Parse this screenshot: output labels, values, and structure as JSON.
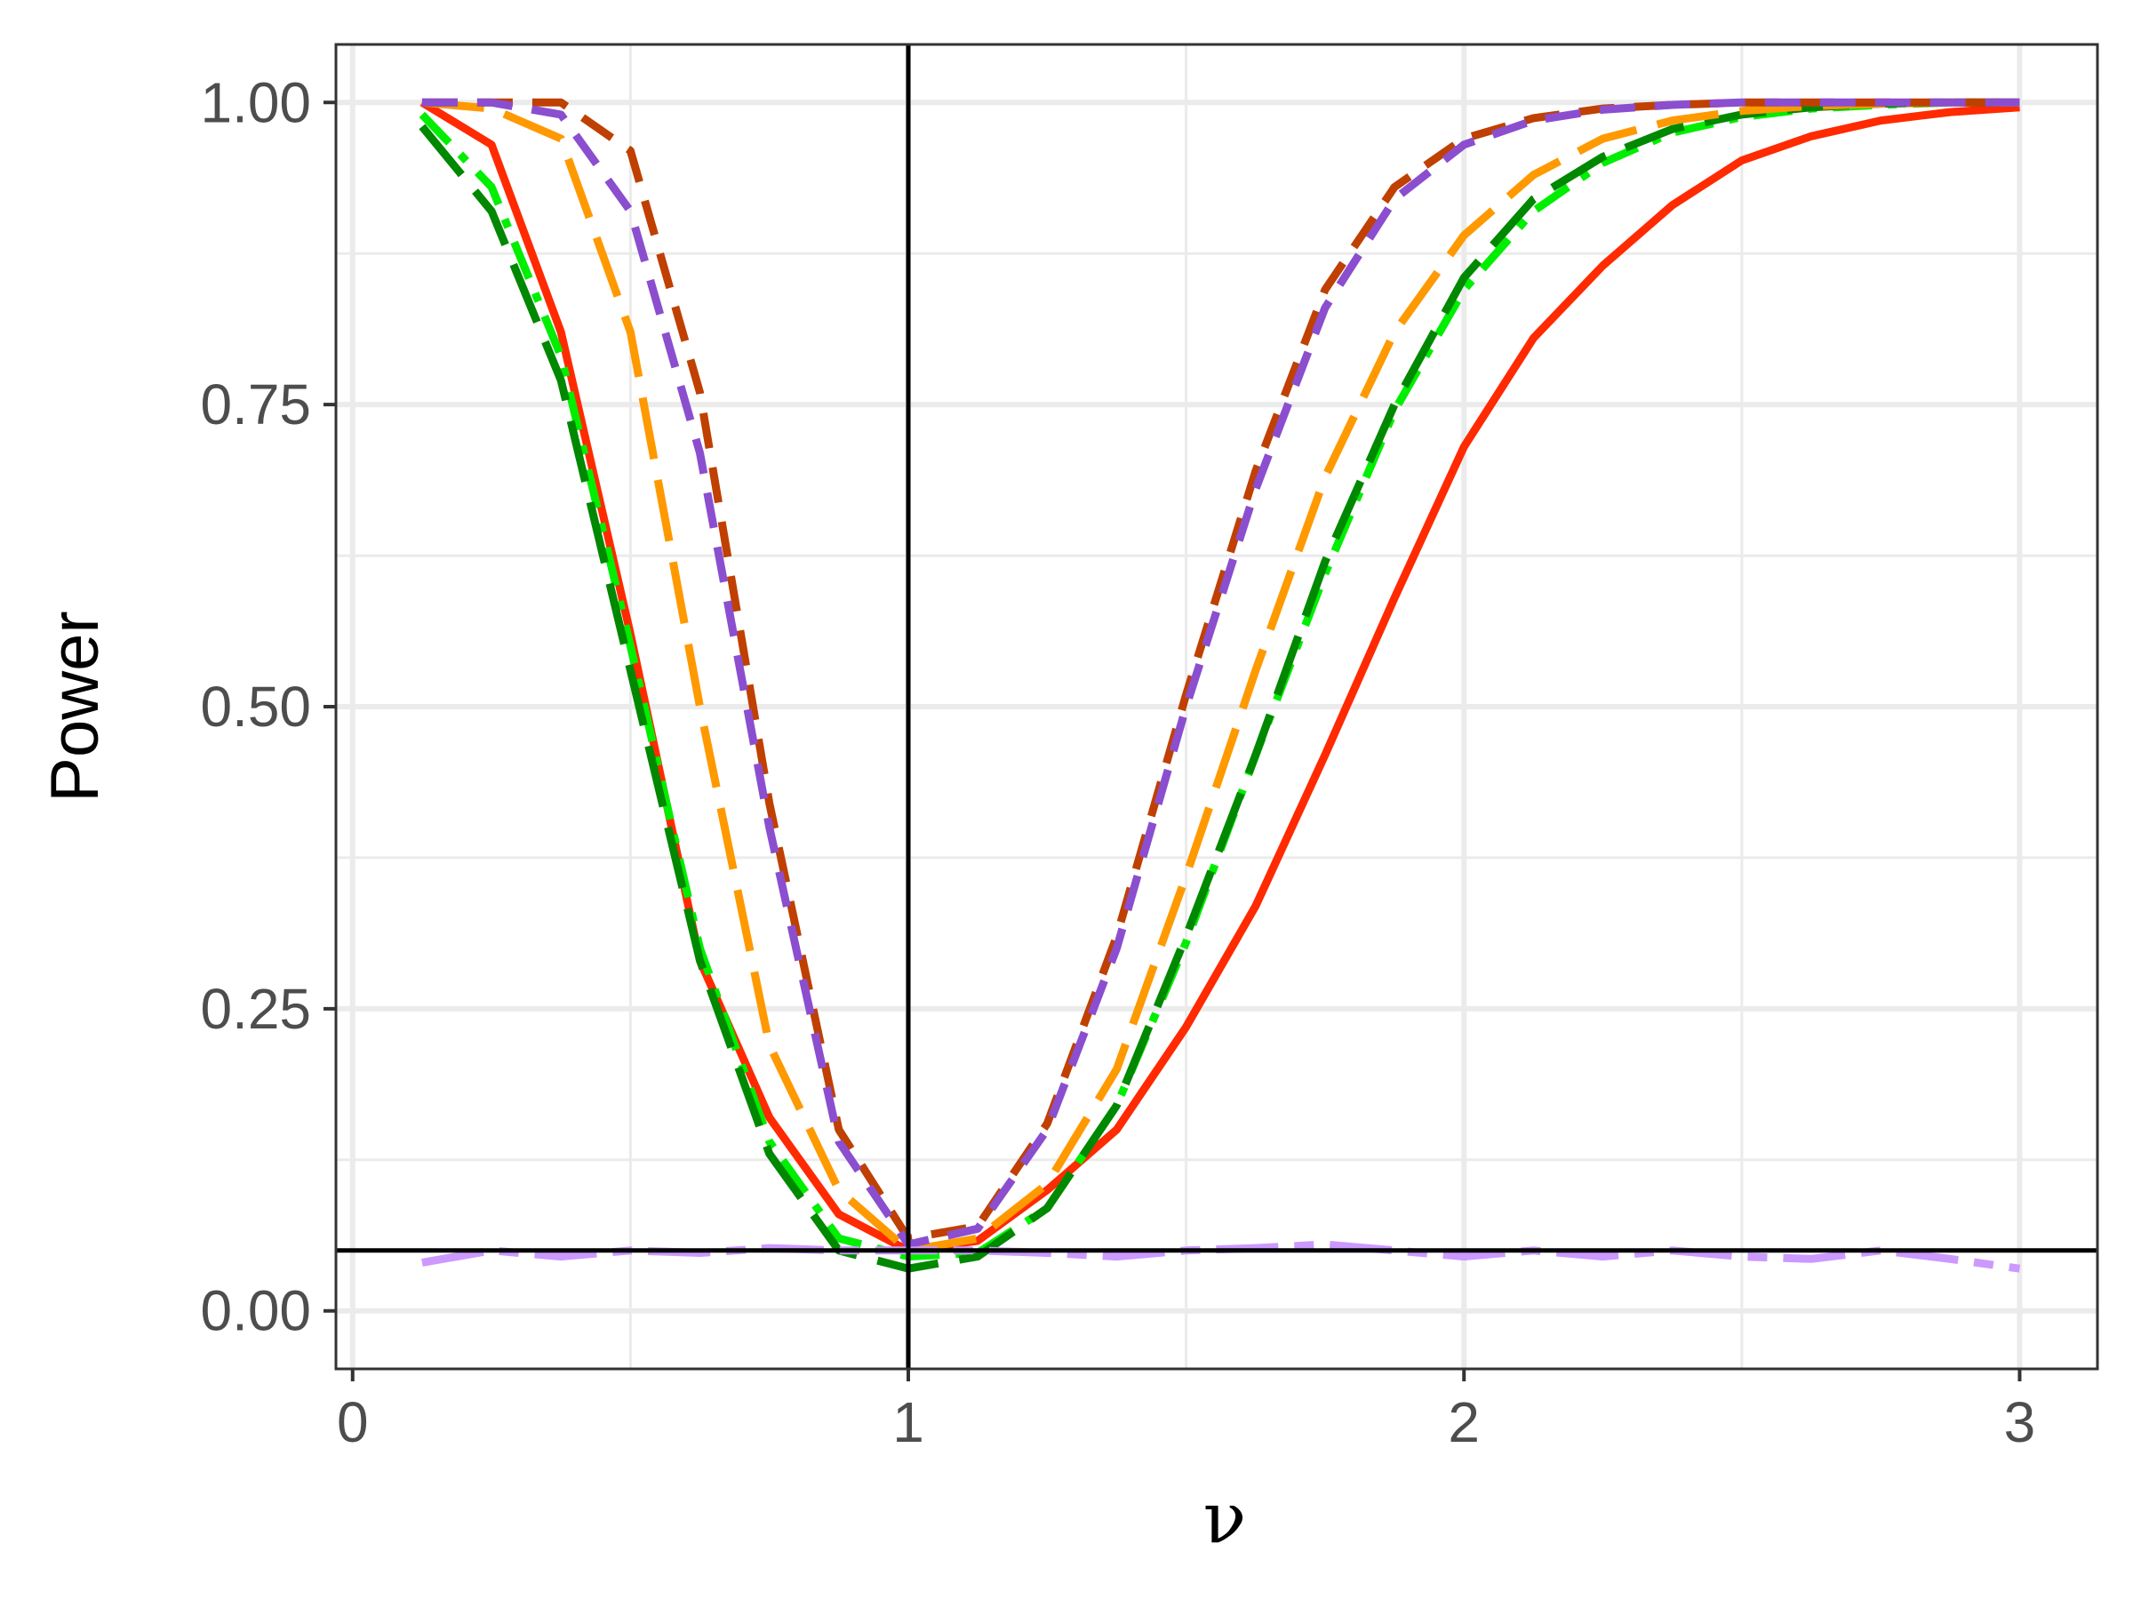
{
  "chart_data": {
    "type": "line",
    "xlabel": "ν",
    "ylabel": "Power",
    "xlim": [
      -0.03,
      3.14
    ],
    "ylim": [
      -0.048,
      1.048
    ],
    "x_ticks": [
      {
        "value": 0,
        "label": "0"
      },
      {
        "value": 1,
        "label": "1"
      },
      {
        "value": 2,
        "label": "2"
      },
      {
        "value": 3,
        "label": "3"
      }
    ],
    "y_ticks": [
      {
        "value": 0,
        "label": "0.00"
      },
      {
        "value": 0.25,
        "label": "0.25"
      },
      {
        "value": 0.5,
        "label": "0.50"
      },
      {
        "value": 0.75,
        "label": "0.75"
      },
      {
        "value": 1,
        "label": "1.00"
      }
    ],
    "grid": true,
    "legend": "none",
    "reference_lines": {
      "vertical_x": 1,
      "horizontal_y": 0.05,
      "color": "#000000"
    },
    "series": [
      {
        "color": "#ff2a00",
        "dash": "solid",
        "points": [
          [
            0.125,
            1.0
          ],
          [
            0.25,
            0.965
          ],
          [
            0.375,
            0.81
          ],
          [
            0.5,
            0.56
          ],
          [
            0.625,
            0.29
          ],
          [
            0.75,
            0.16
          ],
          [
            0.875,
            0.08
          ],
          [
            1.0,
            0.05
          ],
          [
            1.125,
            0.058
          ],
          [
            1.25,
            0.1
          ],
          [
            1.375,
            0.15
          ],
          [
            1.5,
            0.235
          ],
          [
            1.625,
            0.335
          ],
          [
            1.75,
            0.46
          ],
          [
            1.875,
            0.59
          ],
          [
            2.0,
            0.715
          ],
          [
            2.125,
            0.805
          ],
          [
            2.25,
            0.865
          ],
          [
            2.375,
            0.915
          ],
          [
            2.5,
            0.952
          ],
          [
            2.625,
            0.972
          ],
          [
            2.75,
            0.985
          ],
          [
            2.875,
            0.992
          ],
          [
            3.0,
            0.996
          ]
        ]
      },
      {
        "color": "#00ee00",
        "dash": "dashdot",
        "points": [
          [
            0.125,
            0.99
          ],
          [
            0.25,
            0.93
          ],
          [
            0.375,
            0.79
          ],
          [
            0.5,
            0.55
          ],
          [
            0.625,
            0.3
          ],
          [
            0.75,
            0.14
          ],
          [
            0.875,
            0.06
          ],
          [
            1.0,
            0.045
          ],
          [
            1.125,
            0.048
          ],
          [
            1.25,
            0.085
          ],
          [
            1.375,
            0.17
          ],
          [
            1.5,
            0.305
          ],
          [
            1.625,
            0.46
          ],
          [
            1.75,
            0.61
          ],
          [
            1.875,
            0.745
          ],
          [
            2.0,
            0.845
          ],
          [
            2.125,
            0.91
          ],
          [
            2.25,
            0.95
          ],
          [
            2.375,
            0.975
          ],
          [
            2.5,
            0.988
          ],
          [
            2.625,
            0.995
          ],
          [
            2.75,
            0.998
          ],
          [
            2.875,
            1.0
          ],
          [
            3.0,
            1.0
          ]
        ]
      },
      {
        "color": "#008800",
        "dash": "longdash",
        "points": [
          [
            0.125,
            0.98
          ],
          [
            0.25,
            0.91
          ],
          [
            0.375,
            0.77
          ],
          [
            0.5,
            0.53
          ],
          [
            0.625,
            0.29
          ],
          [
            0.75,
            0.13
          ],
          [
            0.875,
            0.05
          ],
          [
            1.0,
            0.035
          ],
          [
            1.125,
            0.045
          ],
          [
            1.25,
            0.085
          ],
          [
            1.375,
            0.17
          ],
          [
            1.5,
            0.31
          ],
          [
            1.625,
            0.46
          ],
          [
            1.75,
            0.62
          ],
          [
            1.875,
            0.75
          ],
          [
            2.0,
            0.855
          ],
          [
            2.125,
            0.92
          ],
          [
            2.25,
            0.955
          ],
          [
            2.375,
            0.978
          ],
          [
            2.5,
            0.99
          ],
          [
            2.625,
            0.996
          ],
          [
            2.75,
            0.999
          ],
          [
            2.875,
            1.0
          ],
          [
            3.0,
            1.0
          ]
        ]
      },
      {
        "color": "#ff9900",
        "dash": "longdash",
        "points": [
          [
            0.125,
            1.0
          ],
          [
            0.25,
            0.995
          ],
          [
            0.375,
            0.97
          ],
          [
            0.5,
            0.81
          ],
          [
            0.625,
            0.5
          ],
          [
            0.75,
            0.22
          ],
          [
            0.875,
            0.1
          ],
          [
            1.0,
            0.05
          ],
          [
            1.125,
            0.06
          ],
          [
            1.25,
            0.105
          ],
          [
            1.375,
            0.2
          ],
          [
            1.5,
            0.36
          ],
          [
            1.625,
            0.53
          ],
          [
            1.75,
            0.69
          ],
          [
            1.875,
            0.81
          ],
          [
            2.0,
            0.89
          ],
          [
            2.125,
            0.94
          ],
          [
            2.25,
            0.97
          ],
          [
            2.375,
            0.985
          ],
          [
            2.5,
            0.993
          ],
          [
            2.625,
            0.997
          ],
          [
            2.75,
            0.999
          ],
          [
            2.875,
            1.0
          ],
          [
            3.0,
            1.0
          ]
        ]
      },
      {
        "color": "#bf4000",
        "dash": "dashed",
        "points": [
          [
            0.125,
            1.0
          ],
          [
            0.25,
            1.0
          ],
          [
            0.375,
            1.0
          ],
          [
            0.5,
            0.96
          ],
          [
            0.625,
            0.76
          ],
          [
            0.75,
            0.42
          ],
          [
            0.875,
            0.15
          ],
          [
            1.0,
            0.06
          ],
          [
            1.125,
            0.07
          ],
          [
            1.25,
            0.155
          ],
          [
            1.375,
            0.31
          ],
          [
            1.5,
            0.51
          ],
          [
            1.625,
            0.695
          ],
          [
            1.75,
            0.845
          ],
          [
            1.875,
            0.93
          ],
          [
            2.0,
            0.97
          ],
          [
            2.125,
            0.987
          ],
          [
            2.25,
            0.995
          ],
          [
            2.375,
            0.998
          ],
          [
            2.5,
            1.0
          ],
          [
            2.625,
            1.0
          ],
          [
            2.75,
            1.0
          ],
          [
            2.875,
            1.0
          ],
          [
            3.0,
            1.0
          ]
        ]
      },
      {
        "color": "#8b4ecf",
        "dash": "dashed",
        "points": [
          [
            0.125,
            1.0
          ],
          [
            0.25,
            1.0
          ],
          [
            0.375,
            0.99
          ],
          [
            0.5,
            0.91
          ],
          [
            0.625,
            0.71
          ],
          [
            0.75,
            0.4
          ],
          [
            0.875,
            0.14
          ],
          [
            1.0,
            0.055
          ],
          [
            1.125,
            0.068
          ],
          [
            1.25,
            0.15
          ],
          [
            1.375,
            0.3
          ],
          [
            1.5,
            0.5
          ],
          [
            1.625,
            0.68
          ],
          [
            1.75,
            0.83
          ],
          [
            1.875,
            0.92
          ],
          [
            2.0,
            0.965
          ],
          [
            2.125,
            0.985
          ],
          [
            2.25,
            0.994
          ],
          [
            2.375,
            0.998
          ],
          [
            2.5,
            1.0
          ],
          [
            2.625,
            1.0
          ],
          [
            2.75,
            1.0
          ],
          [
            2.875,
            1.0
          ],
          [
            3.0,
            1.0
          ]
        ]
      },
      {
        "color": "#cc99ff",
        "dash": "twodash",
        "points": [
          [
            0.125,
            0.04
          ],
          [
            0.25,
            0.05
          ],
          [
            0.375,
            0.045
          ],
          [
            0.5,
            0.05
          ],
          [
            0.625,
            0.048
          ],
          [
            0.75,
            0.052
          ],
          [
            0.875,
            0.05
          ],
          [
            1.0,
            0.05
          ],
          [
            1.125,
            0.05
          ],
          [
            1.25,
            0.048
          ],
          [
            1.375,
            0.045
          ],
          [
            1.5,
            0.05
          ],
          [
            1.625,
            0.052
          ],
          [
            1.75,
            0.055
          ],
          [
            1.875,
            0.05
          ],
          [
            2.0,
            0.045
          ],
          [
            2.125,
            0.05
          ],
          [
            2.25,
            0.045
          ],
          [
            2.375,
            0.05
          ],
          [
            2.5,
            0.045
          ],
          [
            2.625,
            0.043
          ],
          [
            2.75,
            0.05
          ],
          [
            2.875,
            0.043
          ],
          [
            3.0,
            0.035
          ]
        ]
      }
    ]
  }
}
